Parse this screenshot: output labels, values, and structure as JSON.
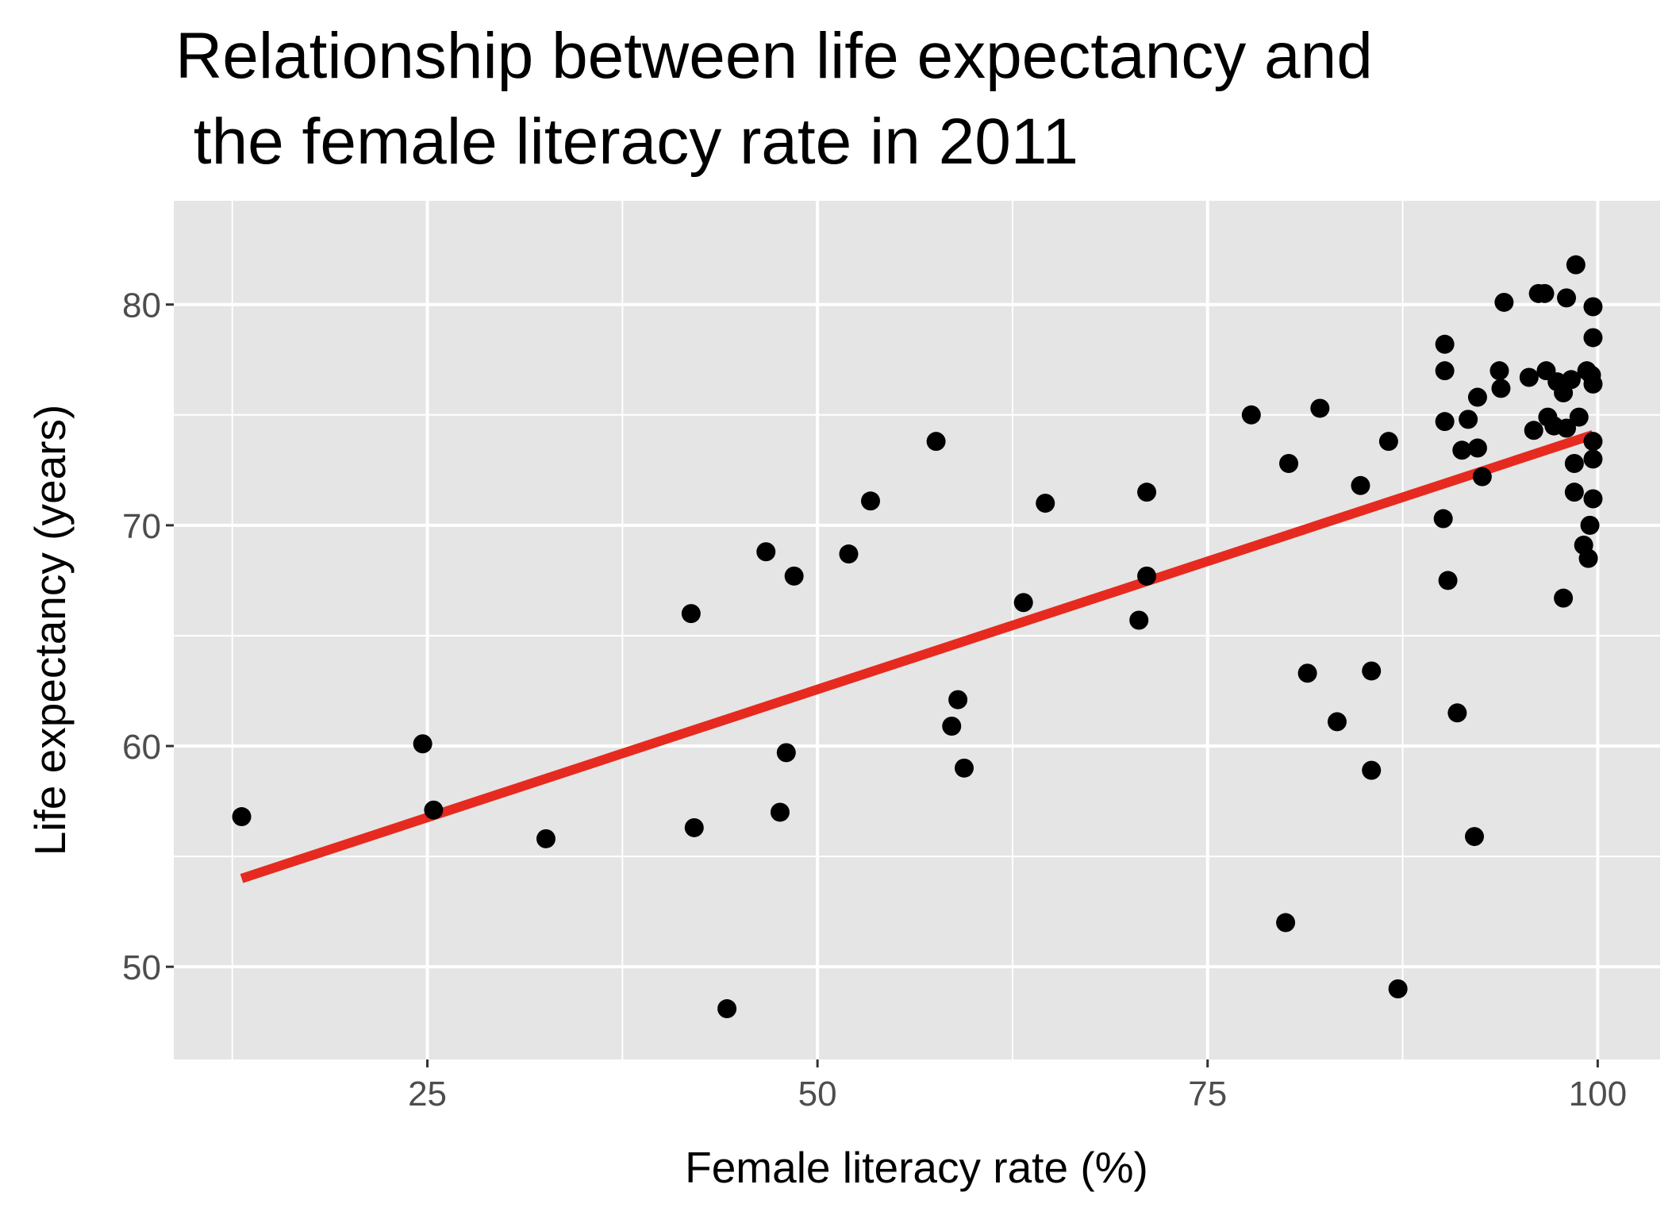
{
  "chart_data": {
    "type": "scatter",
    "title_lines": [
      "Relationship between life expectancy and",
      " the female literacy rate in 2011"
    ],
    "xlabel": "Female literacy rate (%)",
    "ylabel": "Life expectancy (years)",
    "xlim": [
      8.75,
      104.0
    ],
    "ylim": [
      45.8,
      84.7
    ],
    "xticks": [
      25,
      50,
      75,
      100
    ],
    "yticks": [
      50,
      60,
      70,
      80
    ],
    "xtick_labels": [
      "25",
      "50",
      "75",
      "100"
    ],
    "ytick_labels": [
      "50",
      "60",
      "70",
      "80"
    ],
    "grid": true,
    "background": "#e5e5e5",
    "point_color": "#000000",
    "fit_line": {
      "color": "#e62a1f",
      "x": [
        13.1,
        99.7
      ],
      "y": [
        54.0,
        74.1
      ]
    },
    "points": [
      [
        13.1,
        56.8
      ],
      [
        24.7,
        60.1
      ],
      [
        25.4,
        57.1
      ],
      [
        32.6,
        55.8
      ],
      [
        41.9,
        66.0
      ],
      [
        42.1,
        56.3
      ],
      [
        44.2,
        48.1
      ],
      [
        46.7,
        68.8
      ],
      [
        48.5,
        67.7
      ],
      [
        48.0,
        59.7
      ],
      [
        47.6,
        57.0
      ],
      [
        52.0,
        68.7
      ],
      [
        53.4,
        71.1
      ],
      [
        57.6,
        73.8
      ],
      [
        58.6,
        60.9
      ],
      [
        59.0,
        62.1
      ],
      [
        59.4,
        59.0
      ],
      [
        63.2,
        66.5
      ],
      [
        64.6,
        71.0
      ],
      [
        70.6,
        65.7
      ],
      [
        71.1,
        71.5
      ],
      [
        71.1,
        67.7
      ],
      [
        77.8,
        75.0
      ],
      [
        80.0,
        52.0
      ],
      [
        80.2,
        72.8
      ],
      [
        81.4,
        63.3
      ],
      [
        82.2,
        75.3
      ],
      [
        83.3,
        61.1
      ],
      [
        84.8,
        71.8
      ],
      [
        85.5,
        63.4
      ],
      [
        85.5,
        58.9
      ],
      [
        86.6,
        73.8
      ],
      [
        87.2,
        49.0
      ],
      [
        90.1,
        70.3
      ],
      [
        90.2,
        77.0
      ],
      [
        90.2,
        78.2
      ],
      [
        90.2,
        74.7
      ],
      [
        90.4,
        67.5
      ],
      [
        91.0,
        61.5
      ],
      [
        91.3,
        73.4
      ],
      [
        91.7,
        74.8
      ],
      [
        92.1,
        55.9
      ],
      [
        92.3,
        75.8
      ],
      [
        92.3,
        73.5
      ],
      [
        92.6,
        72.2
      ],
      [
        93.7,
        77.0
      ],
      [
        93.8,
        76.2
      ],
      [
        94.0,
        80.1
      ],
      [
        95.6,
        76.7
      ],
      [
        95.9,
        74.3
      ],
      [
        96.2,
        80.5
      ],
      [
        96.6,
        80.5
      ],
      [
        96.7,
        77.0
      ],
      [
        96.8,
        74.9
      ],
      [
        97.2,
        74.5
      ],
      [
        97.4,
        76.5
      ],
      [
        97.8,
        76.0
      ],
      [
        97.8,
        66.7
      ],
      [
        98.0,
        80.3
      ],
      [
        98.0,
        74.4
      ],
      [
        98.3,
        76.6
      ],
      [
        98.5,
        72.8
      ],
      [
        98.5,
        71.5
      ],
      [
        98.6,
        81.8
      ],
      [
        98.8,
        74.9
      ],
      [
        99.1,
        69.1
      ],
      [
        99.3,
        77.0
      ],
      [
        99.4,
        68.5
      ],
      [
        99.5,
        70.0
      ],
      [
        99.6,
        76.8
      ],
      [
        99.7,
        79.9
      ],
      [
        99.7,
        78.5
      ],
      [
        99.7,
        76.4
      ],
      [
        99.7,
        73.8
      ],
      [
        99.7,
        73.0
      ],
      [
        99.7,
        71.2
      ]
    ]
  }
}
